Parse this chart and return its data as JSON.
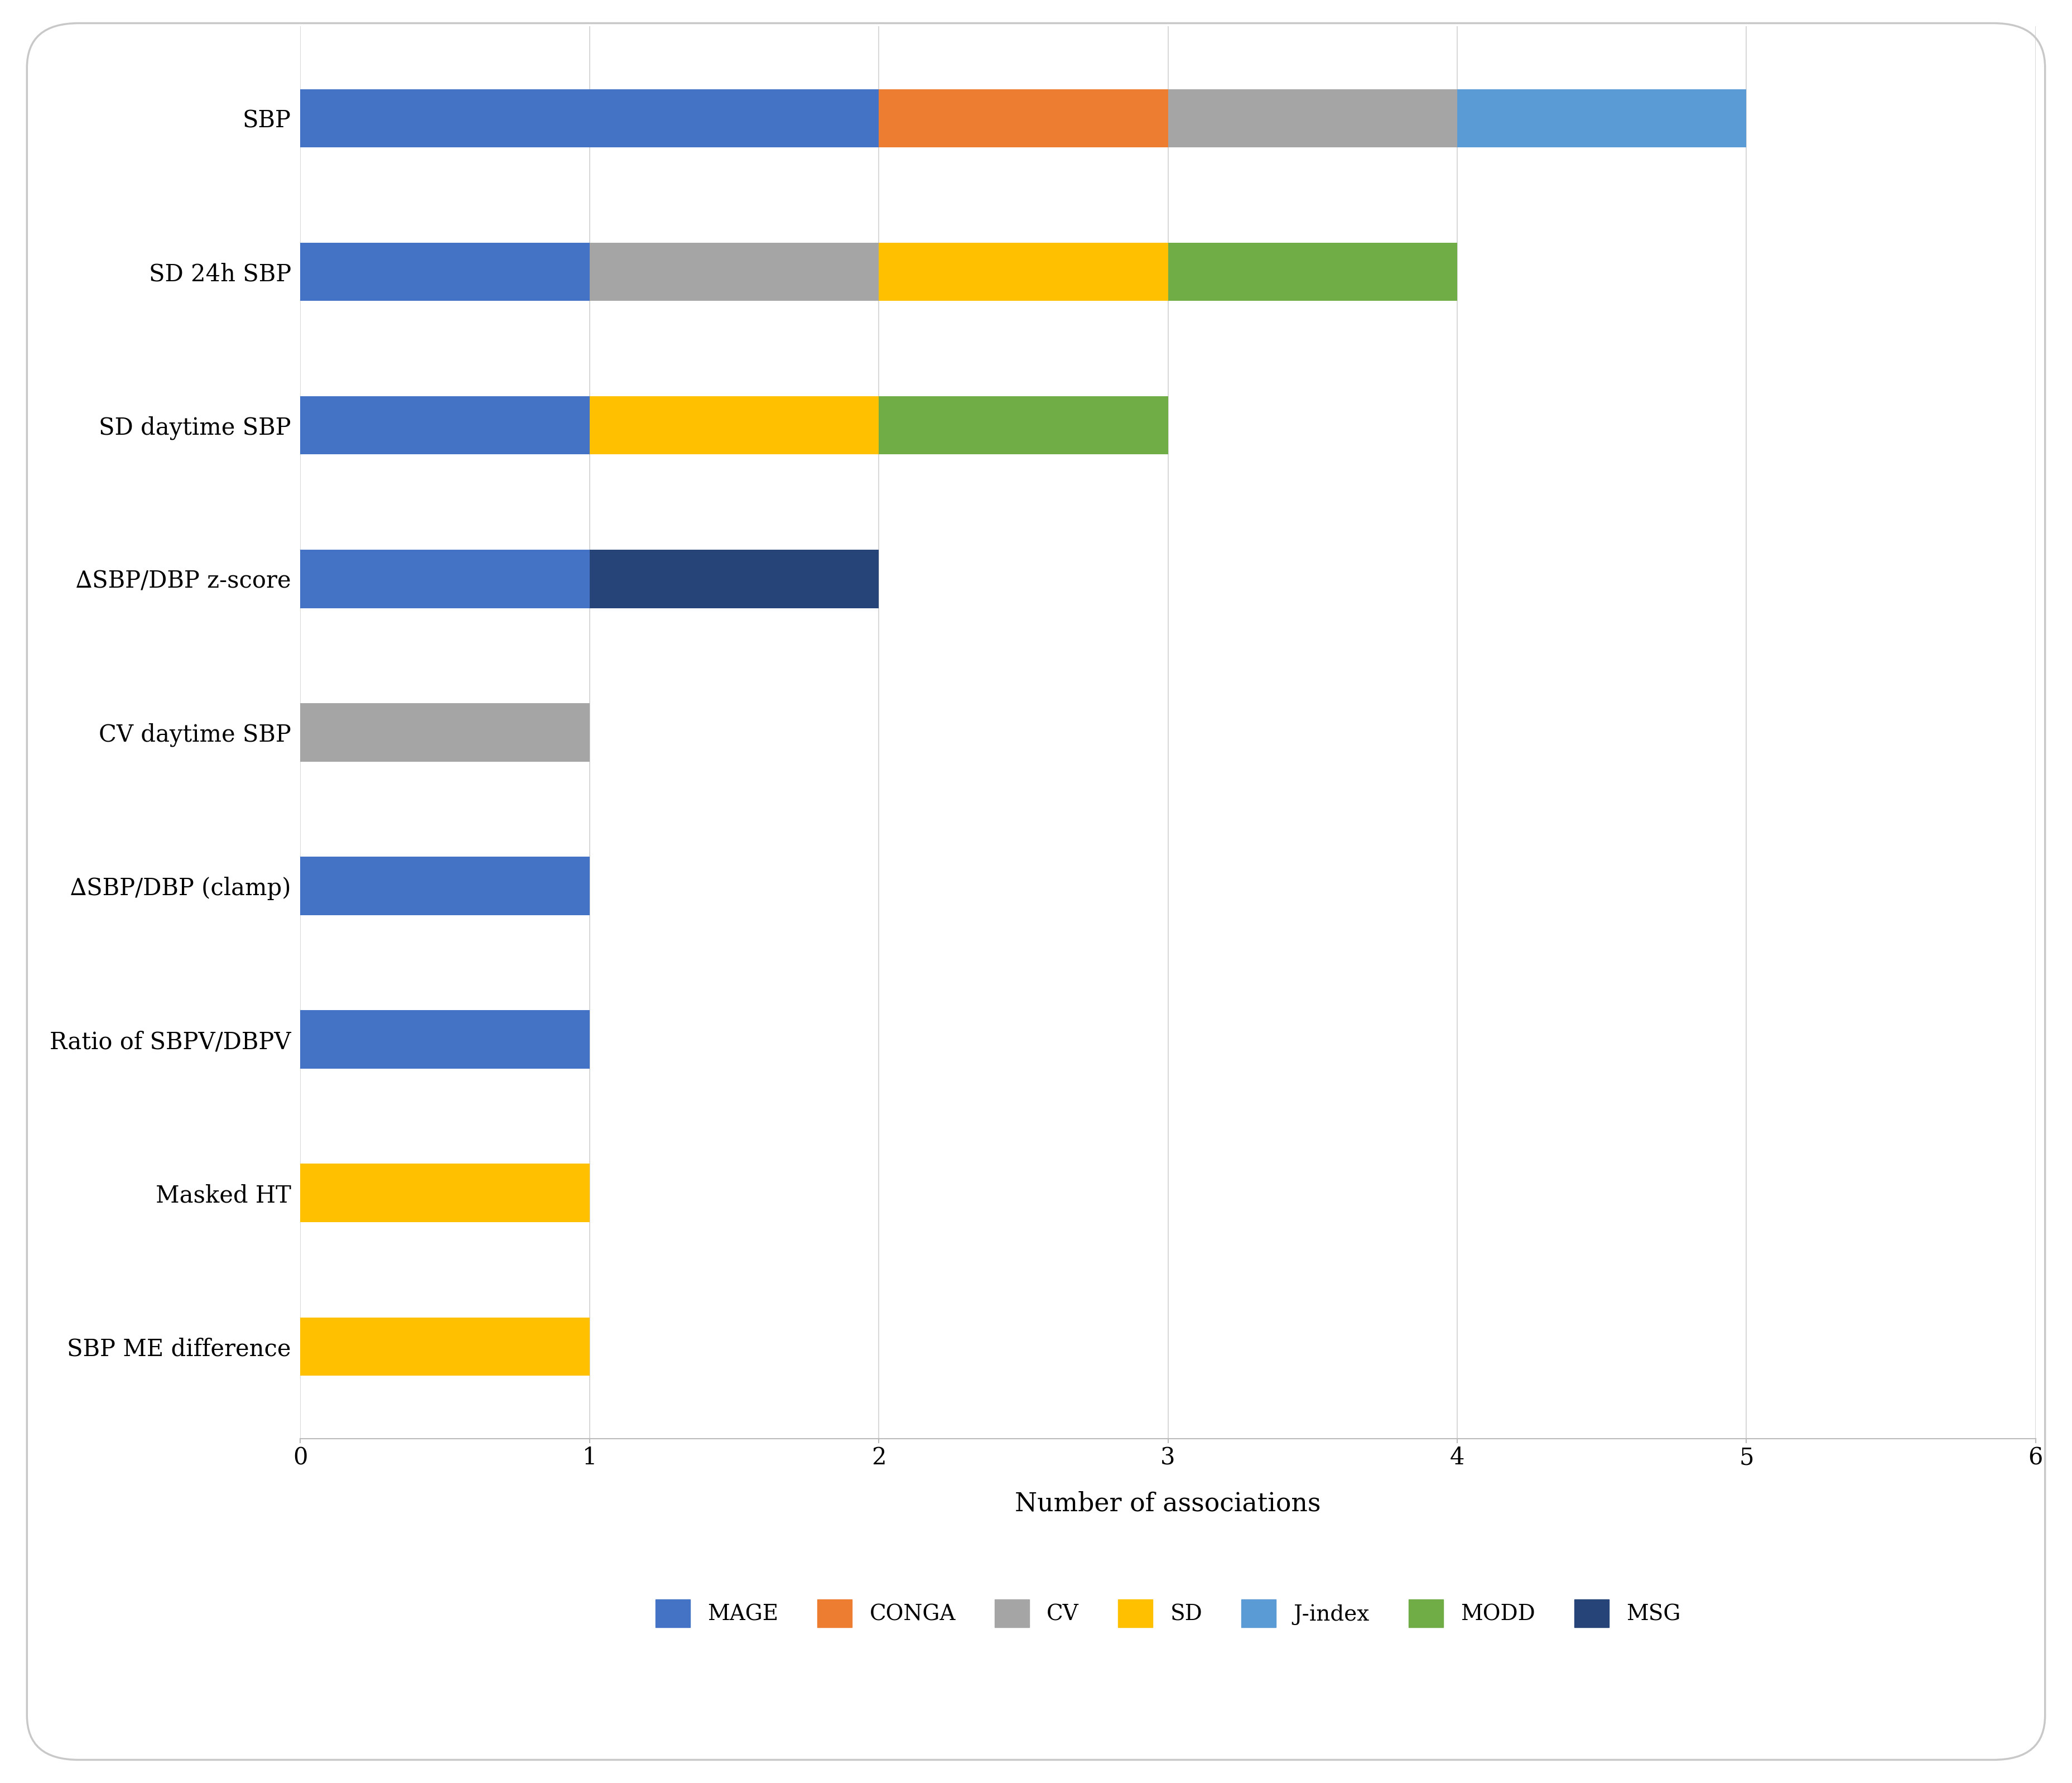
{
  "categories": [
    "SBP ME difference",
    "Masked HT",
    "Ratio of SBPV/DBPV",
    "∆SBP/DBP (clamp)",
    "CV daytime SBP",
    "∆SBP/DBP z-score",
    "SD daytime SBP",
    "SD 24h SBP",
    "SBP"
  ],
  "segments": {
    "MAGE": [
      0,
      0,
      1,
      1,
      0,
      1,
      1,
      1,
      2
    ],
    "CONGA": [
      0,
      0,
      0,
      0,
      0,
      0,
      0,
      0,
      1
    ],
    "CV": [
      0,
      0,
      0,
      0,
      1,
      0,
      0,
      1,
      1
    ],
    "SD": [
      1,
      1,
      0,
      0,
      0,
      0,
      1,
      1,
      0
    ],
    "J-index": [
      0,
      0,
      0,
      0,
      0,
      0,
      0,
      0,
      1
    ],
    "MODD": [
      0,
      0,
      0,
      0,
      0,
      0,
      1,
      1,
      0
    ],
    "MSG": [
      0,
      0,
      0,
      0,
      0,
      1,
      0,
      0,
      0
    ]
  },
  "colors": {
    "MAGE": "#4472C4",
    "CONGA": "#ED7D31",
    "CV": "#A5A5A5",
    "SD": "#FFC000",
    "J-index": "#5B9BD5",
    "MODD": "#70AD47",
    "MSG": "#264478"
  },
  "xlabel": "Number of associations",
  "xlim": [
    0,
    6
  ],
  "xticks": [
    0,
    1,
    2,
    3,
    4,
    5,
    6
  ],
  "legend_order": [
    "MAGE",
    "CONGA",
    "CV",
    "SD",
    "J-index",
    "MODD",
    "MSG"
  ],
  "bar_height": 0.38,
  "background_color": "#FFFFFF",
  "grid_color": "#D9D9D9",
  "border_color": "#C8C8C8",
  "ytick_fontsize": 30,
  "xtick_fontsize": 30,
  "xlabel_fontsize": 33,
  "legend_fontsize": 28
}
